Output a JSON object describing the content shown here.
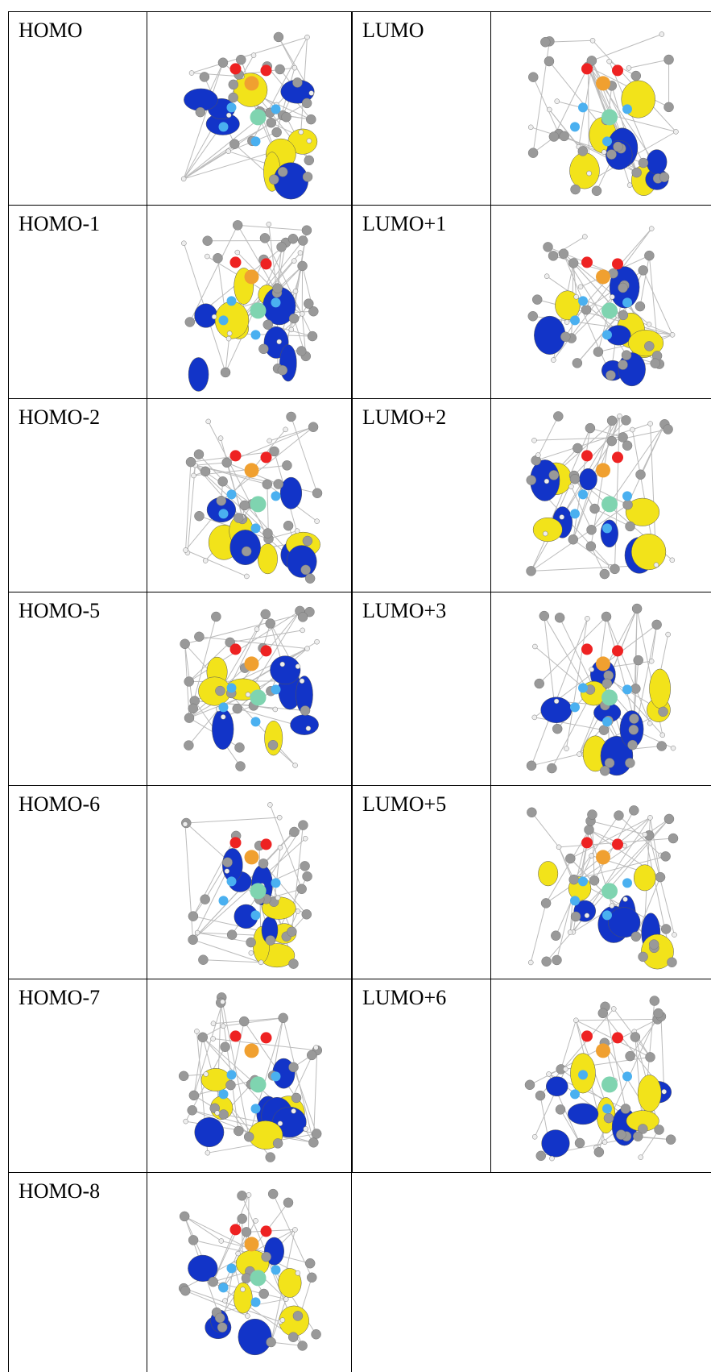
{
  "table": {
    "rows": [
      [
        "HOMO",
        "LUMO"
      ],
      [
        "HOMO-1",
        "LUMO+1"
      ],
      [
        "HOMO-2",
        "LUMO+2"
      ],
      [
        "HOMO-5",
        "LUMO+3"
      ],
      [
        "HOMO-6",
        "LUMO+5"
      ],
      [
        "HOMO-7",
        "LUMO+6"
      ],
      [
        "HOMO-8"
      ]
    ]
  }
}
